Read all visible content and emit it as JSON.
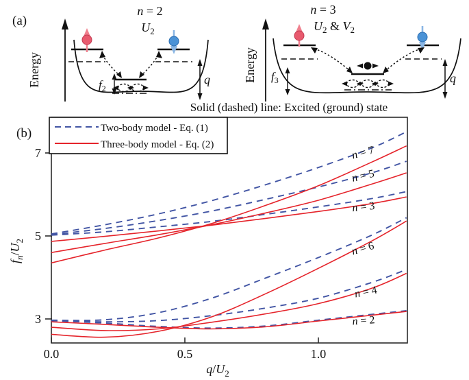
{
  "panel_a": {
    "label": "(a)",
    "caption": "Solid (dashed) line: Excited (ground) state",
    "left_well": {
      "title": [
        "n",
        " = 2"
      ],
      "interaction": [
        "U",
        "2"
      ],
      "energy_label": "Energy",
      "f_label": [
        "f",
        "2"
      ],
      "q_label": "q"
    },
    "right_well": {
      "title": [
        "n",
        " = 3"
      ],
      "interaction": [
        "U",
        "2",
        " & ",
        "V",
        "2"
      ],
      "energy_label": "Energy",
      "f_label": [
        "f",
        "3"
      ],
      "q_label": "q"
    }
  },
  "panel_b": {
    "label": "(b)"
  },
  "chart_data": {
    "type": "line",
    "title": "",
    "xlabel_parts": [
      "q",
      "/",
      "U",
      "2"
    ],
    "ylabel_parts": [
      "f",
      "n",
      "/",
      "U",
      "2"
    ],
    "xlim": [
      0,
      1.333
    ],
    "ylim": [
      2.42,
      7.86
    ],
    "xticks": [
      0.0,
      0.5,
      1.0
    ],
    "xtick_labels": [
      "0.0",
      "0.5",
      "1.0"
    ],
    "yticks": [
      3,
      5,
      7
    ],
    "ytick_labels": [
      "3",
      "5",
      "7"
    ],
    "grid": false,
    "legend_position": "upper-left",
    "colors": {
      "two_body": "#4255a4",
      "three_body": "#e5242b",
      "axis": "#222222"
    },
    "legend": [
      {
        "name": "Two-body model - Eq. (1)",
        "style": "dashed",
        "color": "#4255a4"
      },
      {
        "name": "Three-body model - Eq. (2)",
        "style": "solid",
        "color": "#e5242b"
      }
    ],
    "x_samples": [
      0,
      0.2,
      0.4,
      0.6,
      0.8,
      1.0,
      1.2,
      1.33
    ],
    "series": [
      {
        "name": "n=7 two-body",
        "n": 7,
        "model": "two-body",
        "style": "dashed",
        "values": [
          5.05,
          5.27,
          5.53,
          5.85,
          6.23,
          6.65,
          7.12,
          7.51
        ]
      },
      {
        "name": "n=5 two-body",
        "n": 5,
        "model": "two-body",
        "style": "dashed",
        "values": [
          5.03,
          5.18,
          5.37,
          5.6,
          5.88,
          6.18,
          6.52,
          6.8
        ]
      },
      {
        "name": "n=3 two-body",
        "n": 3,
        "model": "two-body",
        "style": "dashed",
        "values": [
          5.02,
          5.1,
          5.22,
          5.35,
          5.52,
          5.7,
          5.9,
          6.07
        ]
      },
      {
        "name": "n=6 two-body",
        "n": 6,
        "model": "two-body",
        "style": "dashed",
        "values": [
          2.97,
          2.98,
          3.15,
          3.5,
          3.98,
          4.48,
          5.02,
          5.44
        ]
      },
      {
        "name": "n=4 two-body",
        "n": 4,
        "model": "two-body",
        "style": "dashed",
        "values": [
          2.96,
          2.93,
          2.96,
          3.08,
          3.26,
          3.5,
          3.88,
          4.19
        ]
      },
      {
        "name": "n=2 two-body",
        "n": 2,
        "model": "two-body",
        "style": "dashed",
        "values": [
          2.96,
          2.9,
          2.82,
          2.78,
          2.83,
          2.97,
          3.11,
          3.2
        ]
      },
      {
        "name": "n=7 three-body",
        "n": 7,
        "model": "three-body",
        "style": "solid",
        "values": [
          4.35,
          4.66,
          4.95,
          5.3,
          5.73,
          6.21,
          6.78,
          7.17
        ]
      },
      {
        "name": "n=5 three-body",
        "n": 5,
        "model": "three-body",
        "style": "solid",
        "values": [
          4.6,
          4.82,
          5.03,
          5.27,
          5.55,
          5.86,
          6.25,
          6.52
        ]
      },
      {
        "name": "n=3 three-body",
        "n": 3,
        "model": "three-body",
        "style": "solid",
        "values": [
          4.87,
          4.99,
          5.12,
          5.26,
          5.42,
          5.59,
          5.78,
          5.94
        ]
      },
      {
        "name": "n=6 three-body",
        "n": 6,
        "model": "three-body",
        "style": "solid",
        "values": [
          2.63,
          2.56,
          2.7,
          3.05,
          3.6,
          4.22,
          4.88,
          5.36
        ]
      },
      {
        "name": "n=4 three-body",
        "n": 4,
        "model": "three-body",
        "style": "solid",
        "values": [
          2.8,
          2.72,
          2.76,
          2.92,
          3.12,
          3.37,
          3.74,
          4.1
        ]
      },
      {
        "name": "n=2 three-body",
        "n": 2,
        "model": "three-body",
        "style": "solid",
        "values": [
          2.93,
          2.87,
          2.8,
          2.76,
          2.81,
          2.95,
          3.09,
          3.18
        ]
      }
    ],
    "annotations": [
      {
        "parts": [
          "n",
          " = 7"
        ],
        "q": 1.17,
        "v": 6.93,
        "rot": -15
      },
      {
        "parts": [
          "n",
          " = 5"
        ],
        "q": 1.17,
        "v": 6.37,
        "rot": -13
      },
      {
        "parts": [
          "n",
          " = 3"
        ],
        "q": 1.17,
        "v": 5.62,
        "rot": -6
      },
      {
        "parts": [
          "n",
          " = 6"
        ],
        "q": 1.17,
        "v": 4.62,
        "rot": -16
      },
      {
        "parts": [
          "n",
          " = 4"
        ],
        "q": 1.18,
        "v": 3.57,
        "rot": -11
      },
      {
        "parts": [
          "n",
          " = 2"
        ],
        "q": 1.17,
        "v": 2.88,
        "rot": -4
      }
    ]
  }
}
